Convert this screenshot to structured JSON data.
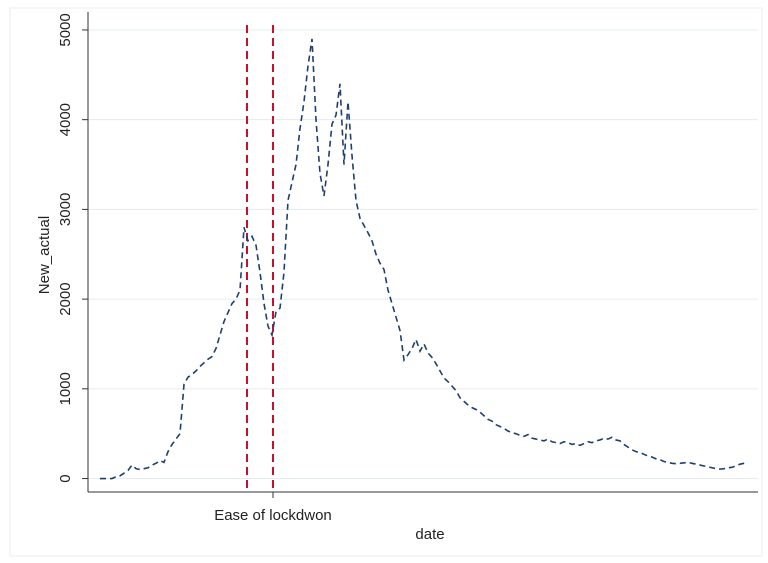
{
  "chart_data": {
    "type": "line",
    "y_label": "New_actual",
    "x_label": "date",
    "series": [
      {
        "name": "New_actual",
        "color": "#1f3f6e",
        "dash": "6,4",
        "values": [
          0,
          0,
          0,
          0,
          20,
          30,
          60,
          90,
          150,
          110,
          100,
          110,
          120,
          150,
          170,
          200,
          180,
          300,
          380,
          440,
          500,
          1050,
          1130,
          1160,
          1200,
          1250,
          1290,
          1330,
          1360,
          1450,
          1600,
          1750,
          1850,
          1950,
          2000,
          2100,
          2800,
          2650,
          2700,
          2600,
          2300,
          1950,
          1700,
          1600,
          1860,
          1900,
          2300,
          3100,
          3300,
          3500,
          3900,
          4200,
          4600,
          4900,
          4000,
          3400,
          3150,
          3500,
          3950,
          4050,
          4400,
          3500,
          4200,
          3600,
          3100,
          2900,
          2820,
          2740,
          2650,
          2500,
          2400,
          2330,
          2100,
          1950,
          1800,
          1650,
          1320,
          1380,
          1450,
          1550,
          1420,
          1500,
          1400,
          1350,
          1280,
          1200,
          1120,
          1080,
          1030,
          980,
          900,
          860,
          820,
          790,
          770,
          740,
          700,
          660,
          640,
          600,
          580,
          560,
          530,
          510,
          500,
          480,
          470,
          490,
          450,
          440,
          430,
          420,
          440,
          410,
          400,
          390,
          410,
          400,
          380,
          390,
          370,
          390,
          410,
          400,
          420,
          430,
          450,
          440,
          460,
          430,
          420,
          380,
          350,
          320,
          300,
          290,
          270,
          250,
          240,
          220,
          210,
          190,
          180,
          170,
          165,
          170,
          175,
          180,
          170,
          160,
          150,
          140,
          130,
          120,
          110,
          105,
          110,
          120,
          125,
          140,
          160,
          170,
          180
        ]
      }
    ],
    "xlim": [
      -3,
      164.5
    ],
    "xticks": [
      {
        "value": 43.25,
        "label": "Ease of lockdwon"
      }
    ],
    "ylim": [
      -150,
      5200
    ],
    "yticks": [
      0,
      1000,
      2000,
      3000,
      4000,
      5000
    ],
    "grid": true,
    "vlines": [
      36.75,
      43.25
    ],
    "vline_color": "#c8102e"
  }
}
